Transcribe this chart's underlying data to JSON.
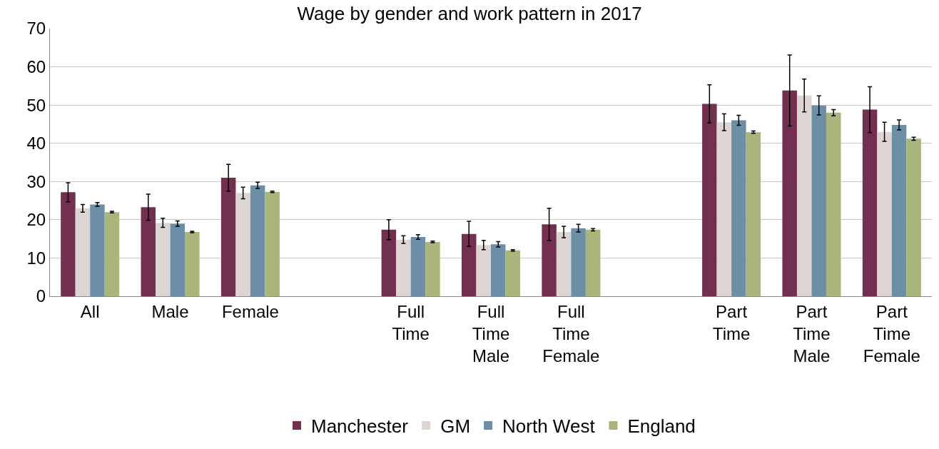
{
  "chart_data": {
    "type": "bar",
    "title": "Wage by gender and work pattern in 2017",
    "categories": [
      "All",
      "Male",
      "Female",
      null,
      "Full Time",
      "Full Time Male",
      "Full Time Female",
      null,
      "Part Time",
      "Part Time Male",
      "Part Time Female"
    ],
    "series": [
      {
        "name": "Manchester",
        "color": "#722f4f",
        "values": [
          27.2,
          23.3,
          31,
          null,
          17.4,
          16.3,
          18.8,
          null,
          50.3,
          53.8,
          48.8
        ],
        "errors": [
          2.5,
          3.4,
          3.5,
          null,
          2.6,
          3.3,
          4.2,
          null,
          5,
          9.3,
          6
        ]
      },
      {
        "name": "GM",
        "color": "#ddd5d2",
        "values": [
          23,
          19.2,
          27,
          null,
          14.8,
          13.4,
          16.8,
          null,
          45.5,
          52.5,
          43
        ],
        "errors": [
          1,
          1.2,
          1.5,
          null,
          1,
          1.2,
          1.5,
          null,
          2.2,
          4.3,
          2.5
        ]
      },
      {
        "name": "North West",
        "color": "#6a8fa7",
        "values": [
          24,
          19,
          29,
          null,
          15.5,
          13.6,
          17.8,
          null,
          46,
          49.9,
          44.8
        ],
        "errors": [
          0.5,
          0.7,
          0.8,
          null,
          0.6,
          0.7,
          1,
          null,
          1.3,
          2.5,
          1.3
        ]
      },
      {
        "name": "England",
        "color": "#a9b57a",
        "values": [
          22,
          16.8,
          27.3,
          null,
          14.2,
          12,
          17.4,
          null,
          42.9,
          48,
          41.2
        ],
        "errors": [
          0.2,
          0.2,
          0.2,
          null,
          0.2,
          0.2,
          0.3,
          null,
          0.3,
          0.8,
          0.4
        ]
      }
    ],
    "ylim": [
      0,
      70
    ],
    "yticks": [
      0,
      10,
      20,
      30,
      40,
      50,
      60,
      70
    ],
    "grid": "y",
    "legend": "bottom"
  }
}
